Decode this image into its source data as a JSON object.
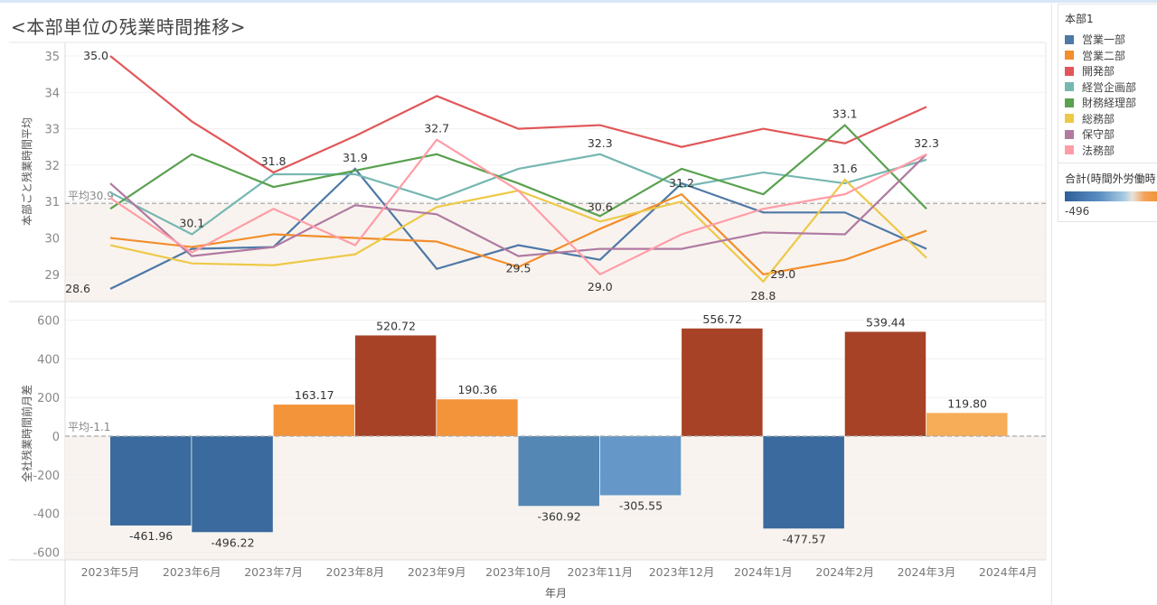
{
  "title": "<本部単位の残業時間推移>",
  "legend": {
    "title": "本部1",
    "items": [
      {
        "label": "営業一部",
        "color": "#4e79a7"
      },
      {
        "label": "営業二部",
        "color": "#f28e2b"
      },
      {
        "label": "開発部",
        "color": "#e15759"
      },
      {
        "label": "経営企画部",
        "color": "#76b7b2"
      },
      {
        "label": "財務経理部",
        "color": "#59a14f"
      },
      {
        "label": "総務部",
        "color": "#edc948"
      },
      {
        "label": "保守部",
        "color": "#b07aa1"
      },
      {
        "label": "法務部",
        "color": "#ff9da7"
      }
    ]
  },
  "color_legend": {
    "title": "合計(時間外労働時",
    "min_label": "-496"
  },
  "chart_data": [
    {
      "type": "line",
      "ylabel": "本部ごと残業時間平均",
      "ylim": [
        28.3,
        35.4
      ],
      "yticks": [
        "29",
        "30",
        "31",
        "32",
        "33",
        "34",
        "35"
      ],
      "categories": [
        "2023年5月",
        "2023年6月",
        "2023年7月",
        "2023年8月",
        "2023年9月",
        "2023年10月",
        "2023年11月",
        "2023年12月",
        "2024年1月",
        "2024年2月",
        "2024年3月"
      ],
      "reference_line": {
        "label": "平均30.9",
        "value": 30.95
      },
      "series": [
        {
          "name": "営業一部",
          "color": "#4e79a7",
          "values": [
            28.6,
            29.7,
            29.75,
            31.9,
            29.15,
            29.8,
            29.4,
            31.5,
            30.7,
            30.7,
            29.7
          ]
        },
        {
          "name": "営業二部",
          "color": "#f28e2b",
          "values": [
            30.0,
            29.75,
            30.1,
            30.0,
            29.9,
            29.2,
            30.25,
            31.2,
            29.0,
            29.4,
            30.2
          ]
        },
        {
          "name": "開発部",
          "color": "#e15759",
          "values": [
            35.0,
            33.2,
            31.8,
            32.8,
            33.9,
            33.0,
            33.1,
            32.5,
            33.0,
            32.6,
            33.6
          ]
        },
        {
          "name": "経営企画部",
          "color": "#76b7b2",
          "values": [
            31.25,
            30.1,
            31.75,
            31.75,
            31.05,
            31.9,
            32.3,
            31.4,
            31.8,
            31.5,
            32.15
          ]
        },
        {
          "name": "財務経理部",
          "color": "#59a14f",
          "values": [
            30.8,
            32.3,
            31.4,
            31.85,
            32.3,
            31.5,
            30.6,
            31.9,
            31.2,
            33.1,
            30.8
          ]
        },
        {
          "name": "総務部",
          "color": "#edc948",
          "values": [
            29.8,
            29.3,
            29.25,
            29.55,
            30.85,
            31.3,
            30.45,
            31.0,
            28.8,
            31.6,
            29.45
          ]
        },
        {
          "name": "保守部",
          "color": "#b07aa1",
          "values": [
            31.5,
            29.5,
            29.75,
            30.9,
            30.65,
            29.5,
            29.7,
            29.7,
            30.15,
            30.1,
            32.3
          ]
        },
        {
          "name": "法務部",
          "color": "#ff9da7",
          "values": [
            31.1,
            29.6,
            30.8,
            29.8,
            32.7,
            31.3,
            29.0,
            30.1,
            30.8,
            31.2,
            32.3
          ]
        }
      ],
      "data_labels": [
        {
          "series": 2,
          "index": 0,
          "text": "35.0"
        },
        {
          "series": 0,
          "index": 0,
          "text": "28.6"
        },
        {
          "series": 3,
          "index": 1,
          "text": "30.1"
        },
        {
          "series": 2,
          "index": 2,
          "text": "31.8"
        },
        {
          "series": 0,
          "index": 3,
          "text": "31.9"
        },
        {
          "series": 7,
          "index": 4,
          "text": "32.7"
        },
        {
          "series": 6,
          "index": 5,
          "text": "29.5"
        },
        {
          "series": 3,
          "index": 6,
          "text": "32.3"
        },
        {
          "series": 4,
          "index": 6,
          "text": "30.6"
        },
        {
          "series": 7,
          "index": 6,
          "text": "29.0"
        },
        {
          "series": 1,
          "index": 7,
          "text": "31.2"
        },
        {
          "series": 1,
          "index": 8,
          "text": "29.0"
        },
        {
          "series": 5,
          "index": 8,
          "text": "28.8"
        },
        {
          "series": 4,
          "index": 9,
          "text": "33.1"
        },
        {
          "series": 5,
          "index": 9,
          "text": "31.6"
        },
        {
          "series": 6,
          "index": 10,
          "text": "32.3"
        }
      ]
    },
    {
      "type": "bar",
      "ylabel": "全社残業時間前月差",
      "xlabel": "年月",
      "ylim": [
        -640,
        640
      ],
      "yticks": [
        "-600",
        "-400",
        "-200",
        "0",
        "200",
        "400",
        "600"
      ],
      "categories": [
        "2023年5月",
        "2023年6月",
        "2023年7月",
        "2023年8月",
        "2023年9月",
        "2023年10月",
        "2023年11月",
        "2023年12月",
        "2024年1月",
        "2024年2月",
        "2024年3月",
        "2024年4月"
      ],
      "values": [
        -461.96,
        -496.22,
        163.17,
        520.72,
        190.36,
        -360.92,
        -305.55,
        556.72,
        -477.57,
        539.44,
        119.8,
        null
      ],
      "value_labels": [
        "-461.96",
        "-496.22",
        "163.17",
        "520.72",
        "190.36",
        "-360.92",
        "-305.55",
        "556.72",
        "-477.57",
        "539.44",
        "119.80",
        ""
      ],
      "reference_line": {
        "label": "平均-1.1",
        "value": -1.1
      },
      "color_scale": {
        "low": "#2f5f98",
        "mid": "#e8e3dc",
        "high": "#a53f23"
      }
    }
  ]
}
